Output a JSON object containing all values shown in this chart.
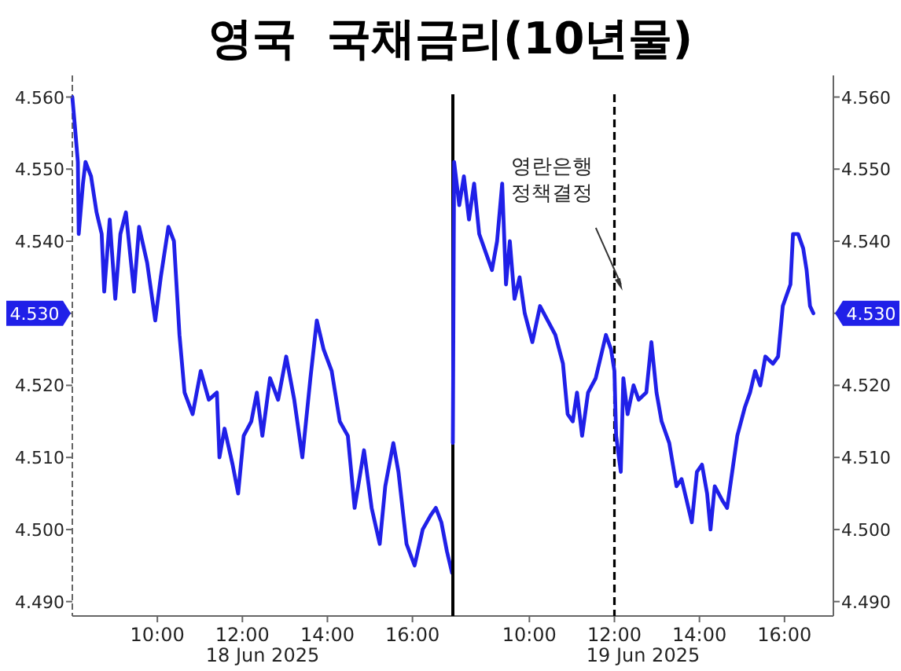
{
  "chart_data": [
    {
      "type": "line",
      "title": "영국  국채금리(10년물)",
      "xlabel": "18 Jun 2025",
      "xlim": [
        8,
        16.95
      ],
      "ylim": [
        4.488,
        4.563
      ],
      "xticks": [
        {
          "value": 10,
          "label": "10:00"
        },
        {
          "value": 12,
          "label": "12:00"
        },
        {
          "value": 14,
          "label": "14:00"
        },
        {
          "value": 16,
          "label": "16:00"
        }
      ],
      "yticks": [
        {
          "value": 4.49,
          "label": "4.490"
        },
        {
          "value": 4.5,
          "label": "4.500"
        },
        {
          "value": 4.51,
          "label": "4.510"
        },
        {
          "value": 4.52,
          "label": "4.520"
        },
        {
          "value": 4.53,
          "label": "4.530"
        },
        {
          "value": 4.54,
          "label": "4.540"
        },
        {
          "value": 4.55,
          "label": "4.550"
        },
        {
          "value": 4.56,
          "label": "4.560"
        }
      ],
      "series": [
        {
          "color": "#2020e8",
          "x": [
            8.0,
            8.06,
            8.13,
            8.15,
            8.25,
            8.31,
            8.44,
            8.57,
            8.69,
            8.75,
            8.88,
            9.01,
            9.13,
            9.26,
            9.45,
            9.57,
            9.76,
            9.95,
            10.08,
            10.26,
            10.39,
            10.52,
            10.64,
            10.83,
            11.02,
            11.21,
            11.4,
            11.46,
            11.58,
            11.77,
            11.9,
            12.03,
            12.21,
            12.34,
            12.47,
            12.65,
            12.84,
            13.03,
            13.22,
            13.41,
            13.6,
            13.75,
            13.91,
            14.1,
            14.29,
            14.48,
            14.64,
            14.86,
            15.04,
            15.23,
            15.36,
            15.55,
            15.67,
            15.86,
            16.05,
            16.24,
            16.43,
            16.55,
            16.68,
            16.81,
            16.93
          ],
          "values": [
            4.56,
            4.556,
            4.551,
            4.541,
            4.548,
            4.551,
            4.549,
            4.544,
            4.541,
            4.533,
            4.543,
            4.532,
            4.541,
            4.544,
            4.533,
            4.542,
            4.537,
            4.529,
            4.535,
            4.542,
            4.54,
            4.527,
            4.519,
            4.516,
            4.522,
            4.518,
            4.519,
            4.51,
            4.514,
            4.509,
            4.505,
            4.513,
            4.515,
            4.519,
            4.513,
            4.521,
            4.518,
            4.524,
            4.518,
            4.51,
            4.521,
            4.529,
            4.525,
            4.522,
            4.515,
            4.513,
            4.503,
            4.511,
            4.503,
            4.498,
            4.506,
            4.512,
            4.508,
            4.498,
            4.495,
            4.5,
            4.502,
            4.503,
            4.501,
            4.497,
            4.494
          ]
        }
      ]
    },
    {
      "type": "line",
      "xlabel": "19 Jun 2025",
      "xlim": [
        8.2,
        17.15
      ],
      "ylim": [
        4.488,
        4.563
      ],
      "xticks": [
        {
          "value": 10,
          "label": "10:00"
        },
        {
          "value": 12,
          "label": "12:00"
        },
        {
          "value": 14,
          "label": "14:00"
        },
        {
          "value": 16,
          "label": "16:00"
        }
      ],
      "yticks": [
        {
          "value": 4.49,
          "label": "4.490"
        },
        {
          "value": 4.5,
          "label": "4.500"
        },
        {
          "value": 4.51,
          "label": "4.510"
        },
        {
          "value": 4.52,
          "label": "4.520"
        },
        {
          "value": 4.53,
          "label": "4.530"
        },
        {
          "value": 4.54,
          "label": "4.540"
        },
        {
          "value": 4.55,
          "label": "4.550"
        },
        {
          "value": 4.56,
          "label": "4.560"
        }
      ],
      "ref_lines": [
        {
          "axis": "x",
          "value": 12,
          "color": "#000000",
          "line_style": "dashed"
        }
      ],
      "annotations": [
        "영란은행 정책결정"
      ],
      "series": [
        {
          "color": "#2020e8",
          "x": [
            8.2,
            8.23,
            8.35,
            8.46,
            8.58,
            8.7,
            8.82,
            9.0,
            9.12,
            9.24,
            9.36,
            9.45,
            9.54,
            9.65,
            9.77,
            9.89,
            10.07,
            10.25,
            10.43,
            10.61,
            10.79,
            10.9,
            11.02,
            11.12,
            11.24,
            11.38,
            11.56,
            11.68,
            11.8,
            11.92,
            12.0,
            12.04,
            12.15,
            12.21,
            12.31,
            12.45,
            12.57,
            12.75,
            12.87,
            12.99,
            13.11,
            13.29,
            13.46,
            13.58,
            13.7,
            13.82,
            13.94,
            14.06,
            14.18,
            14.26,
            14.36,
            14.54,
            14.65,
            14.77,
            14.89,
            15.07,
            15.19,
            15.31,
            15.43,
            15.55,
            15.73,
            15.85,
            15.96,
            16.14,
            16.2,
            16.32,
            16.44,
            16.52,
            16.6,
            16.68
          ],
          "values": [
            4.512,
            4.551,
            4.545,
            4.549,
            4.543,
            4.548,
            4.541,
            4.538,
            4.536,
            4.54,
            4.548,
            4.534,
            4.54,
            4.532,
            4.535,
            4.53,
            4.526,
            4.531,
            4.529,
            4.527,
            4.523,
            4.516,
            4.515,
            4.519,
            4.513,
            4.519,
            4.521,
            4.524,
            4.527,
            4.525,
            4.522,
            4.513,
            4.508,
            4.521,
            4.516,
            4.52,
            4.518,
            4.519,
            4.526,
            4.519,
            4.515,
            4.512,
            4.506,
            4.507,
            4.504,
            4.501,
            4.508,
            4.509,
            4.505,
            4.5,
            4.506,
            4.504,
            4.503,
            4.508,
            4.513,
            4.517,
            4.519,
            4.522,
            4.52,
            4.524,
            4.523,
            4.524,
            4.531,
            4.534,
            4.541,
            4.541,
            4.539,
            4.536,
            4.531,
            4.53
          ]
        }
      ]
    }
  ]
}
